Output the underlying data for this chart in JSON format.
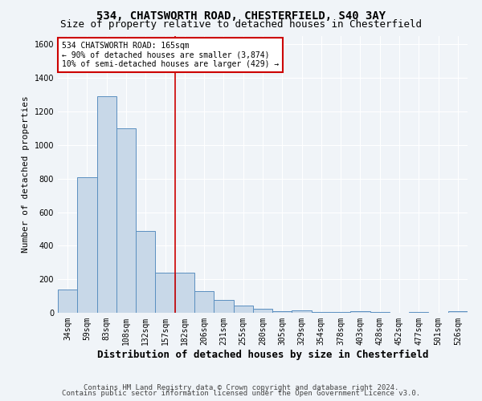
{
  "title1": "534, CHATSWORTH ROAD, CHESTERFIELD, S40 3AY",
  "title2": "Size of property relative to detached houses in Chesterfield",
  "xlabel": "Distribution of detached houses by size in Chesterfield",
  "ylabel": "Number of detached properties",
  "categories": [
    "34sqm",
    "59sqm",
    "83sqm",
    "108sqm",
    "132sqm",
    "157sqm",
    "182sqm",
    "206sqm",
    "231sqm",
    "255sqm",
    "280sqm",
    "305sqm",
    "329sqm",
    "354sqm",
    "378sqm",
    "403sqm",
    "428sqm",
    "452sqm",
    "477sqm",
    "501sqm",
    "526sqm"
  ],
  "values": [
    140,
    810,
    1290,
    1100,
    490,
    240,
    240,
    130,
    75,
    45,
    25,
    10,
    15,
    5,
    5,
    10,
    5,
    0,
    5,
    0,
    10
  ],
  "bar_color": "#c8d8e8",
  "bar_edge_color": "#5a8fc0",
  "vline_x": 5.5,
  "vline_color": "#cc0000",
  "ylim": [
    0,
    1650
  ],
  "yticks": [
    0,
    200,
    400,
    600,
    800,
    1000,
    1200,
    1400,
    1600
  ],
  "annotation_text": "534 CHATSWORTH ROAD: 165sqm\n← 90% of detached houses are smaller (3,874)\n10% of semi-detached houses are larger (429) →",
  "annotation_box_color": "#ffffff",
  "annotation_box_edge": "#cc0000",
  "footer1": "Contains HM Land Registry data © Crown copyright and database right 2024.",
  "footer2": "Contains public sector information licensed under the Open Government Licence v3.0.",
  "bg_color": "#f0f4f8",
  "grid_color": "#ffffff",
  "title1_fontsize": 10,
  "title2_fontsize": 9,
  "xlabel_fontsize": 9,
  "ylabel_fontsize": 8,
  "tick_fontsize": 7,
  "footer_fontsize": 6.5
}
